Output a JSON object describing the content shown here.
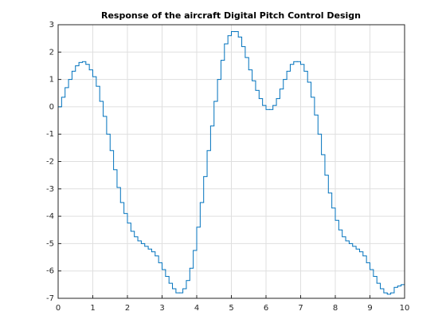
{
  "chart_data": {
    "type": "stairs",
    "title": "Response of the aircraft Digital Pitch Control Design",
    "x": [
      0,
      0.1,
      0.2,
      0.3,
      0.4,
      0.5,
      0.6,
      0.7,
      0.8,
      0.9,
      1,
      1.1,
      1.2,
      1.3,
      1.4,
      1.5,
      1.6,
      1.7,
      1.8,
      1.9,
      2,
      2.1,
      2.2,
      2.3,
      2.4,
      2.5,
      2.6,
      2.7,
      2.8,
      2.9,
      3,
      3.1,
      3.2,
      3.3,
      3.4,
      3.5,
      3.6,
      3.7,
      3.8,
      3.9,
      4,
      4.1,
      4.2,
      4.3,
      4.4,
      4.5,
      4.6,
      4.7,
      4.8,
      4.9,
      5,
      5.1,
      5.2,
      5.3,
      5.4,
      5.5,
      5.6,
      5.7,
      5.8,
      5.9,
      6,
      6.1,
      6.2,
      6.3,
      6.4,
      6.5,
      6.6,
      6.7,
      6.8,
      6.9,
      7,
      7.1,
      7.2,
      7.3,
      7.4,
      7.5,
      7.6,
      7.7,
      7.8,
      7.9,
      8,
      8.1,
      8.2,
      8.3,
      8.4,
      8.5,
      8.6,
      8.7,
      8.8,
      8.9,
      9,
      9.1,
      9.2,
      9.3,
      9.4,
      9.5,
      9.6,
      9.7,
      9.8,
      9.9,
      10
    ],
    "series": [
      {
        "color": "#0072bd",
        "values": [
          0,
          0.35,
          0.7,
          1.0,
          1.3,
          1.5,
          1.62,
          1.65,
          1.55,
          1.35,
          1.1,
          0.75,
          0.2,
          -0.35,
          -1.0,
          -1.6,
          -2.3,
          -2.95,
          -3.5,
          -3.9,
          -4.25,
          -4.55,
          -4.75,
          -4.9,
          -5.0,
          -5.1,
          -5.2,
          -5.3,
          -5.45,
          -5.7,
          -5.95,
          -6.2,
          -6.45,
          -6.65,
          -6.8,
          -6.8,
          -6.65,
          -6.35,
          -5.9,
          -5.25,
          -4.4,
          -3.5,
          -2.55,
          -1.6,
          -0.7,
          0.2,
          1.0,
          1.7,
          2.3,
          2.6,
          2.75,
          2.75,
          2.55,
          2.2,
          1.8,
          1.35,
          0.95,
          0.6,
          0.3,
          0.05,
          -0.1,
          -0.1,
          0.05,
          0.3,
          0.65,
          1.0,
          1.3,
          1.55,
          1.65,
          1.65,
          1.55,
          1.3,
          0.9,
          0.35,
          -0.3,
          -1.0,
          -1.75,
          -2.5,
          -3.15,
          -3.7,
          -4.15,
          -4.5,
          -4.75,
          -4.9,
          -5.0,
          -5.1,
          -5.2,
          -5.3,
          -5.45,
          -5.7,
          -5.95,
          -6.2,
          -6.45,
          -6.65,
          -6.8,
          -6.85,
          -6.8,
          -6.6,
          -6.55,
          -6.5,
          -6.5
        ]
      }
    ],
    "xlim": [
      0,
      10
    ],
    "xticks": [
      0,
      1,
      2,
      3,
      4,
      5,
      6,
      7,
      8,
      9,
      10
    ],
    "ylim": [
      -7,
      3
    ],
    "yticks": [
      -7,
      -6,
      -5,
      -4,
      -3,
      -2,
      -1,
      0,
      1,
      2,
      3
    ],
    "grid": true
  }
}
